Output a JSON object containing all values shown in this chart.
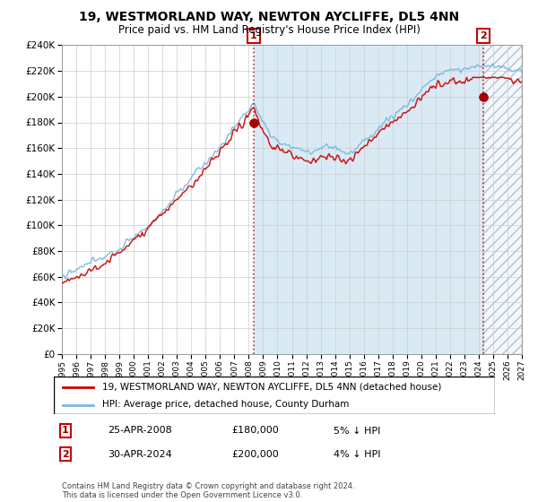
{
  "title": "19, WESTMORLAND WAY, NEWTON AYCLIFFE, DL5 4NN",
  "subtitle": "Price paid vs. HM Land Registry's House Price Index (HPI)",
  "legend_line1": "19, WESTMORLAND WAY, NEWTON AYCLIFFE, DL5 4NN (detached house)",
  "legend_line2": "HPI: Average price, detached house, County Durham",
  "annotation1_date": "25-APR-2008",
  "annotation1_price": "£180,000",
  "annotation1_hpi": "5% ↓ HPI",
  "annotation2_date": "30-APR-2024",
  "annotation2_price": "£200,000",
  "annotation2_hpi": "4% ↓ HPI",
  "footer": "Contains HM Land Registry data © Crown copyright and database right 2024.\nThis data is licensed under the Open Government Licence v3.0.",
  "hpi_color": "#7ab8d9",
  "price_color": "#cc0000",
  "dot_color": "#aa0000",
  "vline_color": "#cc0000",
  "bg_color": "#daeaf5",
  "grid_color": "#cccccc",
  "ylim": [
    0,
    240000
  ],
  "ytick_step": 20000,
  "xstart": 1995,
  "xend": 2027,
  "sale1_year": 2008.32,
  "sale1_price": 180000,
  "sale2_year": 2024.33,
  "sale2_price": 200000,
  "title_fontsize": 10,
  "subtitle_fontsize": 8.5
}
